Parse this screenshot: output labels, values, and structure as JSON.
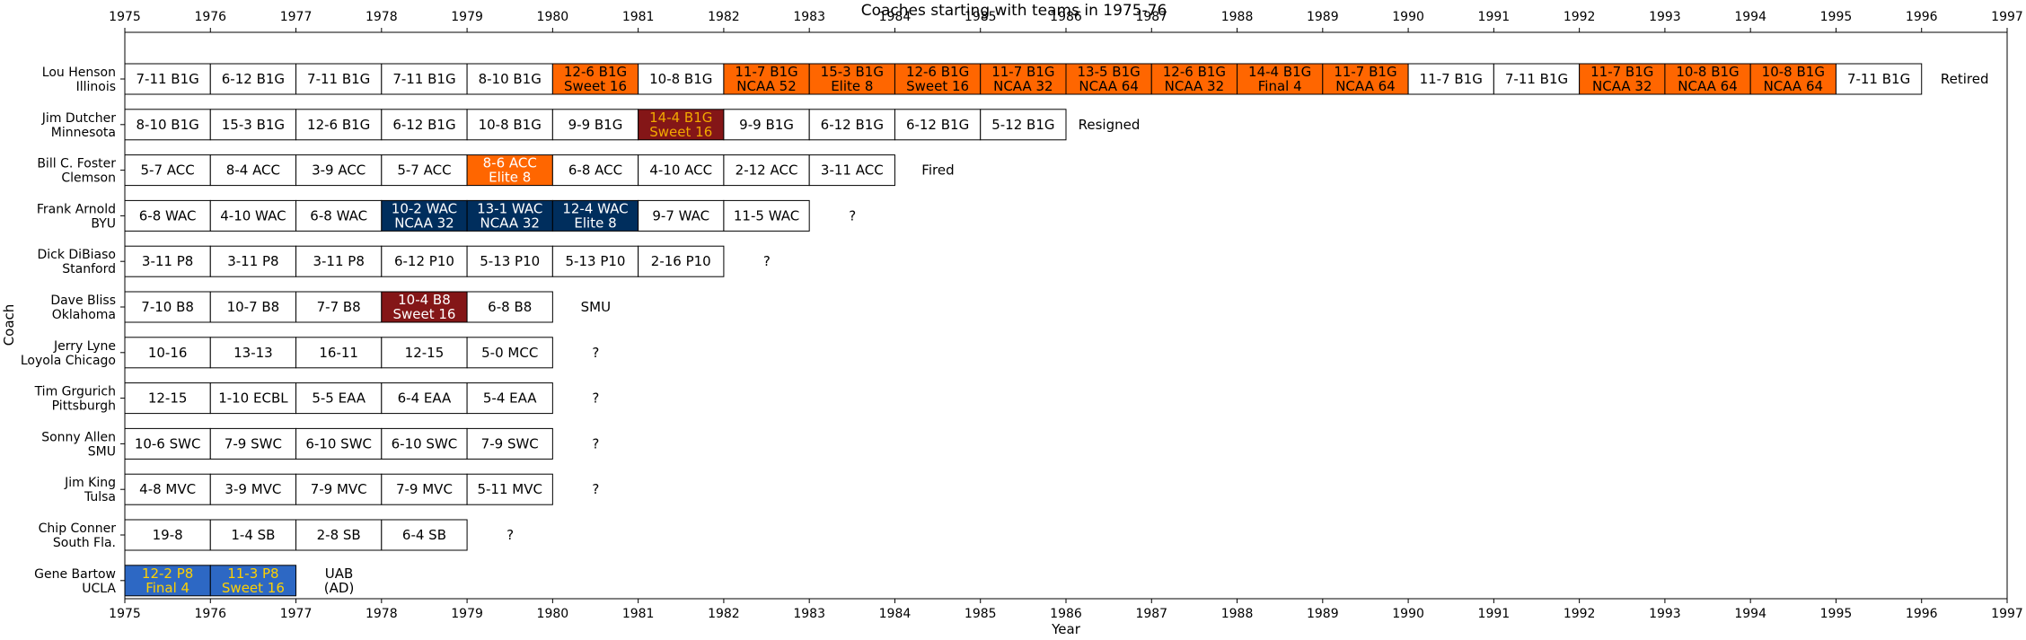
{
  "chart_data": {
    "type": "table",
    "title": "Coaches starting with teams in 1975-76",
    "xlabel": "Year",
    "ylabel": "Coach",
    "xlim": [
      1975,
      1997
    ],
    "xticks": [
      1975,
      1976,
      1977,
      1978,
      1979,
      1980,
      1981,
      1982,
      1983,
      1984,
      1985,
      1986,
      1987,
      1988,
      1989,
      1990,
      1991,
      1992,
      1993,
      1994,
      1995,
      1996,
      1997
    ],
    "grid": false,
    "colors": {
      "orange": "#ff6600",
      "maroon": "#841617",
      "navy": "#002e5d",
      "blue": "#2d68c4",
      "white": "#ffffff",
      "gold": "#f2a900",
      "yellow": "#ffd100"
    },
    "rows": [
      {
        "coach": "Lou Henson",
        "team": "Illinois",
        "seasons": [
          {
            "year": 1975,
            "record": "7-11 B1G",
            "post": "",
            "color": "white"
          },
          {
            "year": 1976,
            "record": "6-12 B1G",
            "post": "",
            "color": "white"
          },
          {
            "year": 1977,
            "record": "7-11 B1G",
            "post": "",
            "color": "white"
          },
          {
            "year": 1978,
            "record": "7-11 B1G",
            "post": "",
            "color": "white"
          },
          {
            "year": 1979,
            "record": "8-10 B1G",
            "post": "",
            "color": "white"
          },
          {
            "year": 1980,
            "record": "12-6 B1G",
            "post": "Sweet 16",
            "color": "orange"
          },
          {
            "year": 1981,
            "record": "10-8 B1G",
            "post": "",
            "color": "white"
          },
          {
            "year": 1982,
            "record": "11-7 B1G",
            "post": "NCAA 52",
            "color": "orange"
          },
          {
            "year": 1983,
            "record": "15-3 B1G",
            "post": "Elite 8",
            "color": "orange"
          },
          {
            "year": 1984,
            "record": "12-6 B1G",
            "post": "Sweet 16",
            "color": "orange"
          },
          {
            "year": 1985,
            "record": "11-7 B1G",
            "post": "NCAA 32",
            "color": "orange"
          },
          {
            "year": 1986,
            "record": "13-5 B1G",
            "post": "NCAA 64",
            "color": "orange"
          },
          {
            "year": 1987,
            "record": "12-6 B1G",
            "post": "NCAA 32",
            "color": "orange"
          },
          {
            "year": 1988,
            "record": "14-4 B1G",
            "post": "Final 4",
            "color": "orange"
          },
          {
            "year": 1989,
            "record": "11-7 B1G",
            "post": "NCAA 64",
            "color": "orange"
          },
          {
            "year": 1990,
            "record": "11-7 B1G",
            "post": "",
            "color": "white"
          },
          {
            "year": 1991,
            "record": "7-11 B1G",
            "post": "",
            "color": "white"
          },
          {
            "year": 1992,
            "record": "11-7 B1G",
            "post": "NCAA 32",
            "color": "orange"
          },
          {
            "year": 1993,
            "record": "10-8 B1G",
            "post": "NCAA 64",
            "color": "orange"
          },
          {
            "year": 1994,
            "record": "10-8 B1G",
            "post": "NCAA 64",
            "color": "orange"
          },
          {
            "year": 1995,
            "record": "7-11 B1G",
            "post": "",
            "color": "white"
          }
        ],
        "end_note": "Retired"
      },
      {
        "coach": "Jim Dutcher",
        "team": "Minnesota",
        "seasons": [
          {
            "year": 1975,
            "record": "8-10 B1G",
            "post": "",
            "color": "white"
          },
          {
            "year": 1976,
            "record": "15-3 B1G",
            "post": "",
            "color": "white"
          },
          {
            "year": 1977,
            "record": "12-6 B1G",
            "post": "",
            "color": "white"
          },
          {
            "year": 1978,
            "record": "6-12 B1G",
            "post": "",
            "color": "white"
          },
          {
            "year": 1979,
            "record": "10-8 B1G",
            "post": "",
            "color": "white"
          },
          {
            "year": 1980,
            "record": "9-9 B1G",
            "post": "",
            "color": "white"
          },
          {
            "year": 1981,
            "record": "14-4 B1G",
            "post": "Sweet 16",
            "color": "maroon",
            "text_color": "gold"
          },
          {
            "year": 1982,
            "record": "9-9 B1G",
            "post": "",
            "color": "white"
          },
          {
            "year": 1983,
            "record": "6-12 B1G",
            "post": "",
            "color": "white"
          },
          {
            "year": 1984,
            "record": "6-12 B1G",
            "post": "",
            "color": "white"
          },
          {
            "year": 1985,
            "record": "5-12 B1G",
            "post": "",
            "color": "white"
          }
        ],
        "end_note": "Resigned"
      },
      {
        "coach": "Bill C. Foster",
        "team": "Clemson",
        "seasons": [
          {
            "year": 1975,
            "record": "5-7 ACC",
            "post": "",
            "color": "white"
          },
          {
            "year": 1976,
            "record": "8-4 ACC",
            "post": "",
            "color": "white"
          },
          {
            "year": 1977,
            "record": "3-9 ACC",
            "post": "",
            "color": "white"
          },
          {
            "year": 1978,
            "record": "5-7 ACC",
            "post": "",
            "color": "white"
          },
          {
            "year": 1979,
            "record": "8-6 ACC",
            "post": "Elite 8",
            "color": "orange",
            "text_color": "white"
          },
          {
            "year": 1980,
            "record": "6-8 ACC",
            "post": "",
            "color": "white"
          },
          {
            "year": 1981,
            "record": "4-10 ACC",
            "post": "",
            "color": "white"
          },
          {
            "year": 1982,
            "record": "2-12 ACC",
            "post": "",
            "color": "white"
          },
          {
            "year": 1983,
            "record": "3-11 ACC",
            "post": "",
            "color": "white"
          }
        ],
        "end_note": "Fired"
      },
      {
        "coach": "Frank Arnold",
        "team": "BYU",
        "seasons": [
          {
            "year": 1975,
            "record": "6-8 WAC",
            "post": "",
            "color": "white"
          },
          {
            "year": 1976,
            "record": "4-10 WAC",
            "post": "",
            "color": "white"
          },
          {
            "year": 1977,
            "record": "6-8 WAC",
            "post": "",
            "color": "white"
          },
          {
            "year": 1978,
            "record": "10-2 WAC",
            "post": "NCAA 32",
            "color": "navy",
            "text_color": "white"
          },
          {
            "year": 1979,
            "record": "13-1 WAC",
            "post": "NCAA 32",
            "color": "navy",
            "text_color": "white"
          },
          {
            "year": 1980,
            "record": "12-4 WAC",
            "post": "Elite 8",
            "color": "navy",
            "text_color": "white"
          },
          {
            "year": 1981,
            "record": "9-7 WAC",
            "post": "",
            "color": "white"
          },
          {
            "year": 1982,
            "record": "11-5 WAC",
            "post": "",
            "color": "white"
          }
        ],
        "end_note": "?"
      },
      {
        "coach": "Dick DiBiaso",
        "team": "Stanford",
        "seasons": [
          {
            "year": 1975,
            "record": "3-11 P8",
            "post": "",
            "color": "white"
          },
          {
            "year": 1976,
            "record": "3-11 P8",
            "post": "",
            "color": "white"
          },
          {
            "year": 1977,
            "record": "3-11 P8",
            "post": "",
            "color": "white"
          },
          {
            "year": 1978,
            "record": "6-12 P10",
            "post": "",
            "color": "white"
          },
          {
            "year": 1979,
            "record": "5-13 P10",
            "post": "",
            "color": "white"
          },
          {
            "year": 1980,
            "record": "5-13 P10",
            "post": "",
            "color": "white"
          },
          {
            "year": 1981,
            "record": "2-16 P10",
            "post": "",
            "color": "white"
          }
        ],
        "end_note": "?"
      },
      {
        "coach": "Dave Bliss",
        "team": "Oklahoma",
        "seasons": [
          {
            "year": 1975,
            "record": "7-10 B8",
            "post": "",
            "color": "white"
          },
          {
            "year": 1976,
            "record": "10-7 B8",
            "post": "",
            "color": "white"
          },
          {
            "year": 1977,
            "record": "7-7 B8",
            "post": "",
            "color": "white"
          },
          {
            "year": 1978,
            "record": "10-4 B8",
            "post": "Sweet 16",
            "color": "maroon",
            "text_color": "white"
          },
          {
            "year": 1979,
            "record": "6-8 B8",
            "post": "",
            "color": "white"
          }
        ],
        "end_note": "SMU"
      },
      {
        "coach": "Jerry Lyne",
        "team": "Loyola Chicago",
        "seasons": [
          {
            "year": 1975,
            "record": "10-16",
            "post": "",
            "color": "white"
          },
          {
            "year": 1976,
            "record": "13-13",
            "post": "",
            "color": "white"
          },
          {
            "year": 1977,
            "record": "16-11",
            "post": "",
            "color": "white"
          },
          {
            "year": 1978,
            "record": "12-15",
            "post": "",
            "color": "white"
          },
          {
            "year": 1979,
            "record": "5-0 MCC",
            "post": "",
            "color": "white"
          }
        ],
        "end_note": "?"
      },
      {
        "coach": "Tim Grgurich",
        "team": "Pittsburgh",
        "seasons": [
          {
            "year": 1975,
            "record": "12-15",
            "post": "",
            "color": "white"
          },
          {
            "year": 1976,
            "record": "1-10 ECBL",
            "post": "",
            "color": "white"
          },
          {
            "year": 1977,
            "record": "5-5 EAA",
            "post": "",
            "color": "white"
          },
          {
            "year": 1978,
            "record": "6-4 EAA",
            "post": "",
            "color": "white"
          },
          {
            "year": 1979,
            "record": "5-4 EAA",
            "post": "",
            "color": "white"
          }
        ],
        "end_note": "?"
      },
      {
        "coach": "Sonny Allen",
        "team": "SMU",
        "seasons": [
          {
            "year": 1975,
            "record": "10-6 SWC",
            "post": "",
            "color": "white"
          },
          {
            "year": 1976,
            "record": "7-9 SWC",
            "post": "",
            "color": "white"
          },
          {
            "year": 1977,
            "record": "6-10 SWC",
            "post": "",
            "color": "white"
          },
          {
            "year": 1978,
            "record": "6-10 SWC",
            "post": "",
            "color": "white"
          },
          {
            "year": 1979,
            "record": "7-9 SWC",
            "post": "",
            "color": "white"
          }
        ],
        "end_note": "?"
      },
      {
        "coach": "Jim King",
        "team": "Tulsa",
        "seasons": [
          {
            "year": 1975,
            "record": "4-8 MVC",
            "post": "",
            "color": "white"
          },
          {
            "year": 1976,
            "record": "3-9 MVC",
            "post": "",
            "color": "white"
          },
          {
            "year": 1977,
            "record": "7-9 MVC",
            "post": "",
            "color": "white"
          },
          {
            "year": 1978,
            "record": "7-9 MVC",
            "post": "",
            "color": "white"
          },
          {
            "year": 1979,
            "record": "5-11 MVC",
            "post": "",
            "color": "white"
          }
        ],
        "end_note": "?"
      },
      {
        "coach": "Chip Conner",
        "team": "South Fla.",
        "seasons": [
          {
            "year": 1975,
            "record": "19-8",
            "post": "",
            "color": "white"
          },
          {
            "year": 1976,
            "record": "1-4 SB",
            "post": "",
            "color": "white"
          },
          {
            "year": 1977,
            "record": "2-8 SB",
            "post": "",
            "color": "white"
          },
          {
            "year": 1978,
            "record": "6-4 SB",
            "post": "",
            "color": "white"
          }
        ],
        "end_note": "?"
      },
      {
        "coach": "Gene Bartow",
        "team": "UCLA",
        "seasons": [
          {
            "year": 1975,
            "record": "12-2 P8",
            "post": "Final 4",
            "color": "blue",
            "text_color": "yellow"
          },
          {
            "year": 1976,
            "record": "11-3 P8",
            "post": "Sweet 16",
            "color": "blue",
            "text_color": "yellow"
          }
        ],
        "end_note": "UAB",
        "end_note_2": "(AD)"
      }
    ]
  }
}
